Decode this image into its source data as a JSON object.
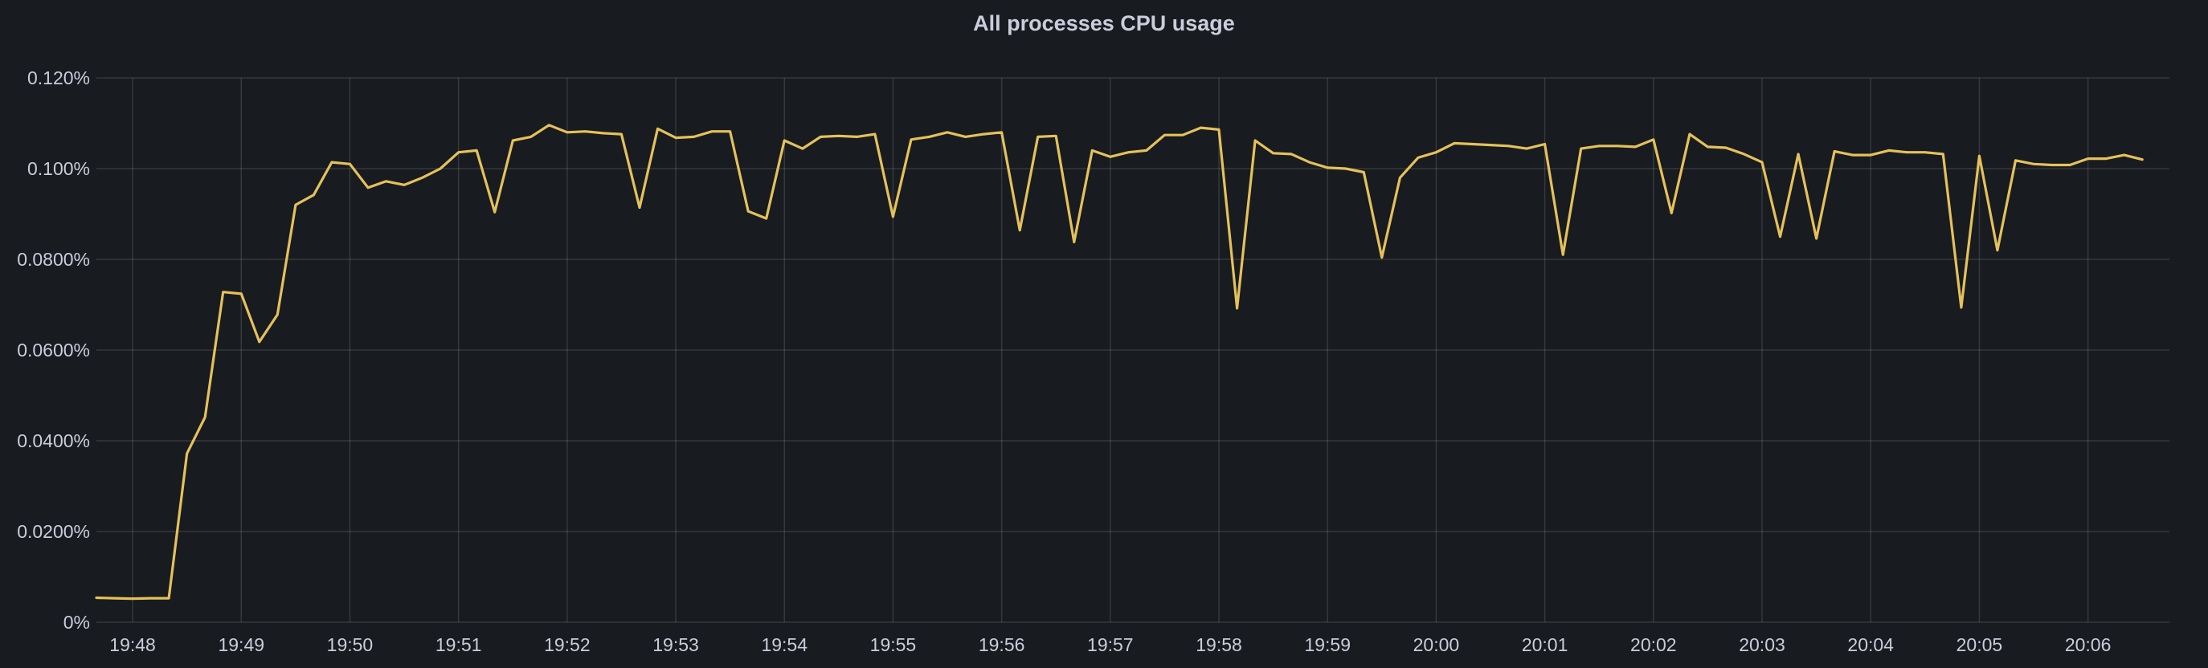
{
  "panel": {
    "title": "All processes CPU usage"
  },
  "colors": {
    "background": "#181b1f",
    "series": "#e5c15a",
    "text": "#ccccdc"
  },
  "chart_data": {
    "type": "line",
    "title": "All processes CPU usage",
    "xlabel": "",
    "ylabel": "",
    "y_unit": "%",
    "ylim": [
      0,
      0.12
    ],
    "y_ticks": [
      {
        "value": 0,
        "label": "0%"
      },
      {
        "value": 0.02,
        "label": "0.0200%"
      },
      {
        "value": 0.04,
        "label": "0.0400%"
      },
      {
        "value": 0.06,
        "label": "0.0600%"
      },
      {
        "value": 0.08,
        "label": "0.0800%"
      },
      {
        "value": 0.1,
        "label": "0.100%"
      },
      {
        "value": 0.12,
        "label": "0.120%"
      }
    ],
    "x_start": "19:47:40",
    "x_end": "20:06:45",
    "x_ticks": [
      "19:48",
      "19:49",
      "19:50",
      "19:51",
      "19:52",
      "19:53",
      "19:54",
      "19:55",
      "19:56",
      "19:57",
      "19:58",
      "19:59",
      "20:00",
      "20:01",
      "20:02",
      "20:03",
      "20:04",
      "20:05",
      "20:06"
    ],
    "grid": true,
    "legend": "none",
    "series": [
      {
        "points": [
          [
            "19:47:40",
            0.0054
          ],
          [
            "19:47:50",
            0.0053
          ],
          [
            "19:48:00",
            0.0052
          ],
          [
            "19:48:10",
            0.0053
          ],
          [
            "19:48:20",
            0.0053
          ],
          [
            "19:48:30",
            0.0372
          ],
          [
            "19:48:40",
            0.0452
          ],
          [
            "19:48:50",
            0.0728
          ],
          [
            "19:49:00",
            0.0724
          ],
          [
            "19:49:10",
            0.0618
          ],
          [
            "19:49:20",
            0.0678
          ],
          [
            "19:49:30",
            0.092
          ],
          [
            "19:49:40",
            0.0942
          ],
          [
            "19:49:50",
            0.1014
          ],
          [
            "19:50:00",
            0.101
          ],
          [
            "19:50:10",
            0.0958
          ],
          [
            "19:50:20",
            0.0972
          ],
          [
            "19:50:30",
            0.0964
          ],
          [
            "19:50:40",
            0.098
          ],
          [
            "19:50:50",
            0.1
          ],
          [
            "19:51:00",
            0.1036
          ],
          [
            "19:51:10",
            0.104
          ],
          [
            "19:51:20",
            0.0904
          ],
          [
            "19:51:30",
            0.1062
          ],
          [
            "19:51:40",
            0.107
          ],
          [
            "19:51:50",
            0.1096
          ],
          [
            "19:52:00",
            0.108
          ],
          [
            "19:52:10",
            0.1082
          ],
          [
            "19:52:20",
            0.1078
          ],
          [
            "19:52:30",
            0.1076
          ],
          [
            "19:52:40",
            0.0914
          ],
          [
            "19:52:50",
            0.1088
          ],
          [
            "19:53:00",
            0.1068
          ],
          [
            "19:53:10",
            0.107
          ],
          [
            "19:53:20",
            0.1082
          ],
          [
            "19:53:30",
            0.1082
          ],
          [
            "19:53:40",
            0.0906
          ],
          [
            "19:53:50",
            0.089
          ],
          [
            "19:54:00",
            0.1062
          ],
          [
            "19:54:10",
            0.1044
          ],
          [
            "19:54:20",
            0.107
          ],
          [
            "19:54:30",
            0.1072
          ],
          [
            "19:54:40",
            0.107
          ],
          [
            "19:54:50",
            0.1076
          ],
          [
            "19:55:00",
            0.0894
          ],
          [
            "19:55:10",
            0.1064
          ],
          [
            "19:55:20",
            0.107
          ],
          [
            "19:55:30",
            0.108
          ],
          [
            "19:55:40",
            0.107
          ],
          [
            "19:55:50",
            0.1076
          ],
          [
            "19:56:00",
            0.108
          ],
          [
            "19:56:10",
            0.0864
          ],
          [
            "19:56:20",
            0.107
          ],
          [
            "19:56:30",
            0.1072
          ],
          [
            "19:56:40",
            0.0838
          ],
          [
            "19:56:50",
            0.104
          ],
          [
            "19:57:00",
            0.1026
          ],
          [
            "19:57:10",
            0.1036
          ],
          [
            "19:57:20",
            0.104
          ],
          [
            "19:57:30",
            0.1074
          ],
          [
            "19:57:40",
            0.1074
          ],
          [
            "19:57:50",
            0.109
          ],
          [
            "19:58:00",
            0.1086
          ],
          [
            "19:58:10",
            0.0692
          ],
          [
            "19:58:20",
            0.1062
          ],
          [
            "19:58:30",
            0.1034
          ],
          [
            "19:58:40",
            0.1032
          ],
          [
            "19:58:50",
            0.1014
          ],
          [
            "19:59:00",
            0.1002
          ],
          [
            "19:59:10",
            0.1
          ],
          [
            "19:59:20",
            0.0992
          ],
          [
            "19:59:30",
            0.0804
          ],
          [
            "19:59:40",
            0.098
          ],
          [
            "19:59:50",
            0.1024
          ],
          [
            "20:00:00",
            0.1036
          ],
          [
            "20:00:10",
            0.1056
          ],
          [
            "20:00:20",
            0.1054
          ],
          [
            "20:00:30",
            0.1052
          ],
          [
            "20:00:40",
            0.105
          ],
          [
            "20:00:50",
            0.1044
          ],
          [
            "20:01:00",
            0.1054
          ],
          [
            "20:01:10",
            0.081
          ],
          [
            "20:01:20",
            0.1044
          ],
          [
            "20:01:30",
            0.105
          ],
          [
            "20:01:40",
            0.105
          ],
          [
            "20:01:50",
            0.1048
          ],
          [
            "20:02:00",
            0.1064
          ],
          [
            "20:02:10",
            0.0902
          ],
          [
            "20:02:20",
            0.1076
          ],
          [
            "20:02:30",
            0.1048
          ],
          [
            "20:02:40",
            0.1046
          ],
          [
            "20:02:50",
            0.1032
          ],
          [
            "20:03:00",
            0.1014
          ],
          [
            "20:03:10",
            0.085
          ],
          [
            "20:03:20",
            0.1032
          ],
          [
            "20:03:30",
            0.0846
          ],
          [
            "20:03:40",
            0.1038
          ],
          [
            "20:03:50",
            0.103
          ],
          [
            "20:04:00",
            0.103
          ],
          [
            "20:04:10",
            0.104
          ],
          [
            "20:04:20",
            0.1036
          ],
          [
            "20:04:30",
            0.1036
          ],
          [
            "20:04:40",
            0.1032
          ],
          [
            "20:04:50",
            0.0694
          ],
          [
            "20:05:00",
            0.1028
          ],
          [
            "20:05:10",
            0.082
          ],
          [
            "20:05:20",
            0.1018
          ],
          [
            "20:05:30",
            0.101
          ],
          [
            "20:05:40",
            0.1008
          ],
          [
            "20:05:50",
            0.1008
          ],
          [
            "20:06:00",
            0.1022
          ],
          [
            "20:06:10",
            0.1022
          ],
          [
            "20:06:20",
            0.103
          ],
          [
            "20:06:30",
            0.102
          ]
        ]
      }
    ]
  }
}
